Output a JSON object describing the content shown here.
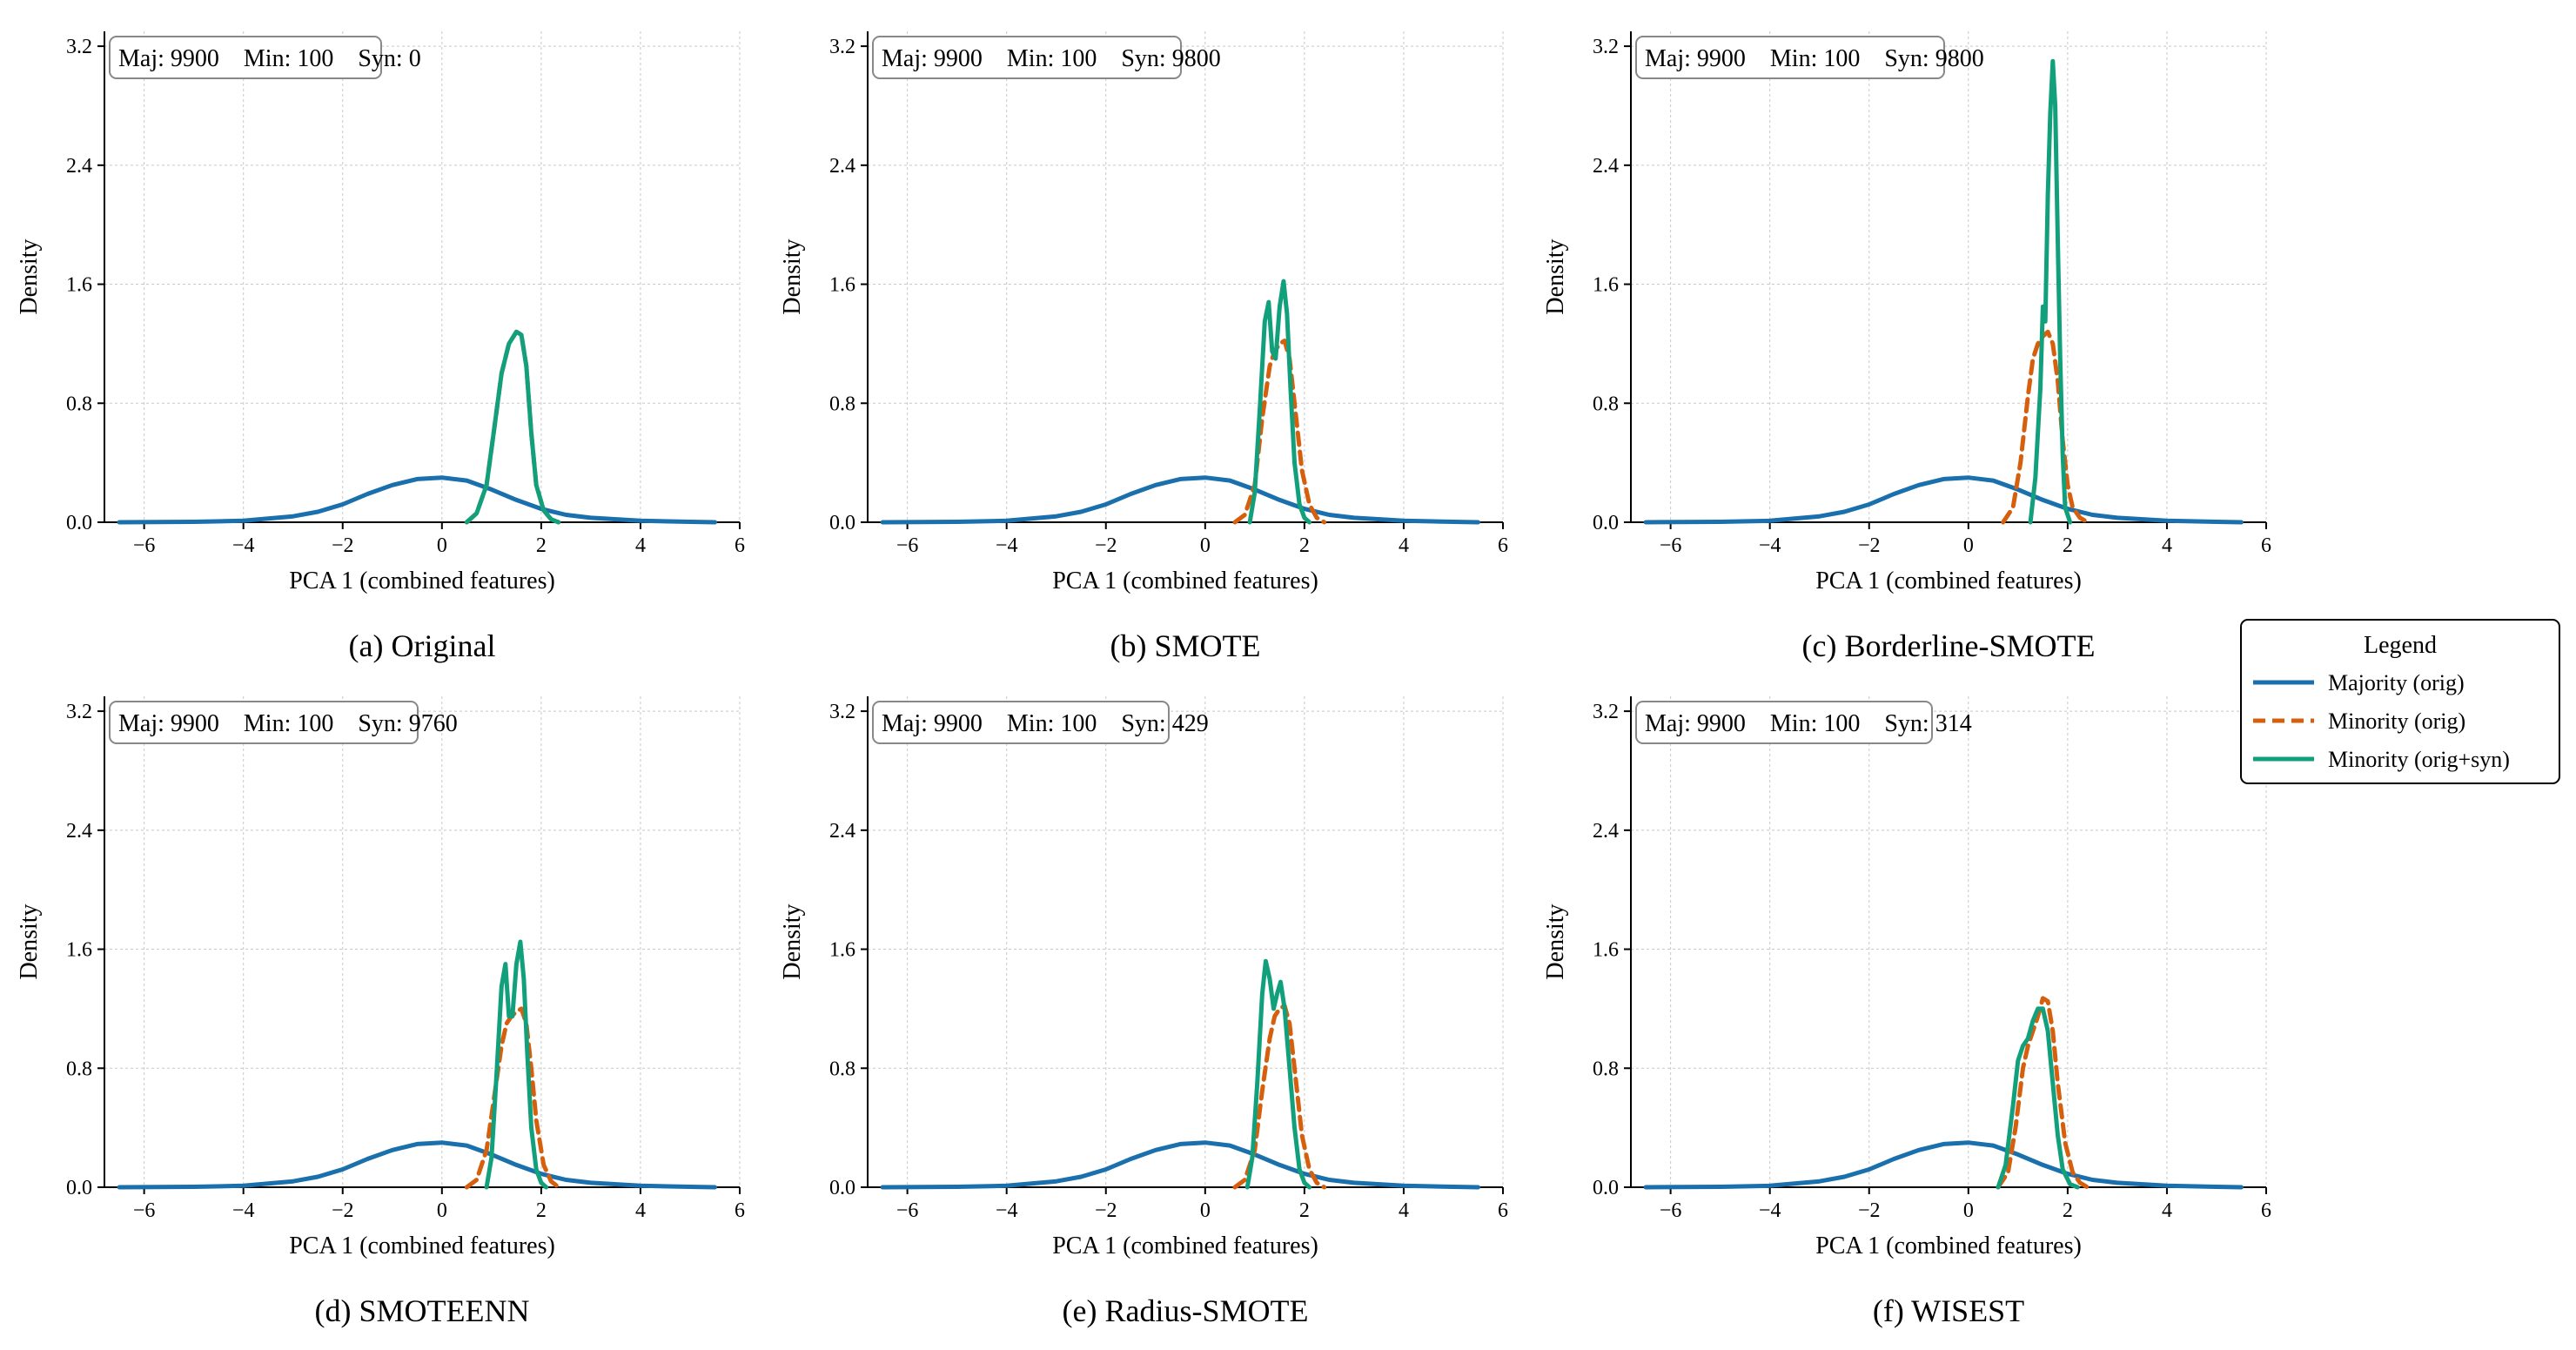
{
  "chart_data": [
    {
      "type": "line",
      "caption": "(a) Original",
      "counts": {
        "maj": "Maj: 9900",
        "min": "Min: 100",
        "syn": "Syn: 0"
      },
      "xlabel": "PCA 1 (combined features)",
      "ylabel": "Density",
      "xlim": [
        -6.8,
        6.0
      ],
      "ylim": [
        0,
        3.3
      ],
      "xticks": [
        -6,
        -4,
        -2,
        0,
        2,
        4,
        6
      ],
      "yticks": [
        0.0,
        0.8,
        1.6,
        2.4,
        3.2
      ],
      "grid": true,
      "series": [
        {
          "name": "Majority (orig)",
          "x": [
            -6.5,
            -5,
            -4,
            -3,
            -2.5,
            -2,
            -1.5,
            -1,
            -0.5,
            0,
            0.5,
            1,
            1.5,
            2,
            2.5,
            3,
            4,
            5,
            5.5
          ],
          "y": [
            0,
            0.003,
            0.01,
            0.04,
            0.07,
            0.12,
            0.19,
            0.25,
            0.29,
            0.3,
            0.28,
            0.22,
            0.15,
            0.09,
            0.05,
            0.03,
            0.01,
            0.003,
            0
          ]
        },
        {
          "name": "Minority (orig)",
          "x": [
            0.5,
            0.7,
            0.9,
            1.05,
            1.2,
            1.35,
            1.5,
            1.6,
            1.7,
            1.8,
            1.9,
            2.05,
            2.2,
            2.35
          ],
          "y": [
            0,
            0.06,
            0.25,
            0.62,
            1.0,
            1.2,
            1.28,
            1.26,
            1.05,
            0.6,
            0.25,
            0.08,
            0.02,
            0
          ]
        },
        {
          "name": "Minority (orig+syn)",
          "x": [
            0.5,
            0.7,
            0.9,
            1.05,
            1.2,
            1.35,
            1.5,
            1.6,
            1.7,
            1.8,
            1.9,
            2.05,
            2.2,
            2.35
          ],
          "y": [
            0,
            0.06,
            0.25,
            0.62,
            1.0,
            1.2,
            1.28,
            1.26,
            1.05,
            0.6,
            0.25,
            0.08,
            0.02,
            0
          ]
        }
      ]
    },
    {
      "type": "line",
      "caption": "(b) SMOTE",
      "counts": {
        "maj": "Maj: 9900",
        "min": "Min: 100",
        "syn": "Syn: 9800"
      },
      "xlabel": "PCA 1 (combined features)",
      "ylabel": "Density",
      "xlim": [
        -6.8,
        6.0
      ],
      "ylim": [
        0,
        3.3
      ],
      "xticks": [
        -6,
        -4,
        -2,
        0,
        2,
        4,
        6
      ],
      "yticks": [
        0.0,
        0.8,
        1.6,
        2.4,
        3.2
      ],
      "grid": true,
      "series": [
        {
          "name": "Majority (orig)",
          "x": [
            -6.5,
            -5,
            -4,
            -3,
            -2.5,
            -2,
            -1.5,
            -1,
            -0.5,
            0,
            0.5,
            1,
            1.5,
            2,
            2.5,
            3,
            4,
            5,
            5.5
          ],
          "y": [
            0,
            0.003,
            0.01,
            0.04,
            0.07,
            0.12,
            0.19,
            0.25,
            0.29,
            0.3,
            0.28,
            0.22,
            0.15,
            0.09,
            0.05,
            0.03,
            0.01,
            0.003,
            0
          ]
        },
        {
          "name": "Minority (orig)",
          "x": [
            0.6,
            0.8,
            1.0,
            1.15,
            1.3,
            1.4,
            1.5,
            1.6,
            1.7,
            1.8,
            1.95,
            2.1,
            2.25,
            2.4
          ],
          "y": [
            0,
            0.05,
            0.25,
            0.7,
            1.05,
            1.15,
            1.2,
            1.22,
            1.1,
            0.8,
            0.35,
            0.12,
            0.03,
            0
          ]
        },
        {
          "name": "Minority (orig+syn)",
          "x": [
            0.9,
            1.0,
            1.1,
            1.2,
            1.28,
            1.35,
            1.42,
            1.5,
            1.58,
            1.65,
            1.72,
            1.8,
            1.9,
            2.0,
            2.1
          ],
          "y": [
            0,
            0.2,
            0.75,
            1.35,
            1.48,
            1.15,
            1.1,
            1.45,
            1.62,
            1.4,
            0.9,
            0.4,
            0.12,
            0.03,
            0
          ]
        }
      ]
    },
    {
      "type": "line",
      "caption": "(c) Borderline-SMOTE",
      "counts": {
        "maj": "Maj: 9900",
        "min": "Min: 100",
        "syn": "Syn: 9800"
      },
      "xlabel": "PCA 1 (combined features)",
      "ylabel": "Density",
      "xlim": [
        -6.8,
        6.0
      ],
      "ylim": [
        0,
        3.3
      ],
      "xticks": [
        -6,
        -4,
        -2,
        0,
        2,
        4,
        6
      ],
      "yticks": [
        0.0,
        0.8,
        1.6,
        2.4,
        3.2
      ],
      "grid": true,
      "series": [
        {
          "name": "Majority (orig)",
          "x": [
            -6.5,
            -5,
            -4,
            -3,
            -2.5,
            -2,
            -1.5,
            -1,
            -0.5,
            0,
            0.5,
            1,
            1.5,
            2,
            2.5,
            3,
            4,
            5,
            5.5
          ],
          "y": [
            0,
            0.003,
            0.01,
            0.04,
            0.07,
            0.12,
            0.19,
            0.25,
            0.29,
            0.3,
            0.28,
            0.22,
            0.15,
            0.09,
            0.05,
            0.03,
            0.01,
            0.003,
            0
          ]
        },
        {
          "name": "Minority (orig)",
          "x": [
            0.7,
            0.9,
            1.05,
            1.2,
            1.3,
            1.4,
            1.5,
            1.6,
            1.7,
            1.8,
            1.9,
            2.0,
            2.1,
            2.25,
            2.4
          ],
          "y": [
            0,
            0.1,
            0.4,
            0.85,
            1.1,
            1.2,
            1.25,
            1.28,
            1.2,
            0.95,
            0.55,
            0.25,
            0.1,
            0.03,
            0
          ]
        },
        {
          "name": "Minority (orig+syn)",
          "x": [
            1.25,
            1.35,
            1.45,
            1.5,
            1.55,
            1.6,
            1.65,
            1.7,
            1.75,
            1.8,
            1.85,
            1.9,
            1.95,
            2.05
          ],
          "y": [
            0,
            0.3,
            0.9,
            1.45,
            1.35,
            2.2,
            2.75,
            3.1,
            2.8,
            1.9,
            1.1,
            0.45,
            0.1,
            0
          ]
        }
      ]
    },
    {
      "type": "line",
      "caption": "(d) SMOTEENN",
      "counts": {
        "maj": "Maj: 9900",
        "min": "Min: 100",
        "syn": "Syn: 9760"
      },
      "xlabel": "PCA 1 (combined features)",
      "ylabel": "Density",
      "xlim": [
        -6.8,
        6.0
      ],
      "ylim": [
        0,
        3.3
      ],
      "xticks": [
        -6,
        -4,
        -2,
        0,
        2,
        4,
        6
      ],
      "yticks": [
        0.0,
        0.8,
        1.6,
        2.4,
        3.2
      ],
      "grid": true,
      "series": [
        {
          "name": "Majority (orig)",
          "x": [
            -6.5,
            -5,
            -4,
            -3,
            -2.5,
            -2,
            -1.5,
            -1,
            -0.5,
            0,
            0.5,
            1,
            1.5,
            2,
            2.5,
            3,
            4,
            5,
            5.5
          ],
          "y": [
            0,
            0.003,
            0.01,
            0.04,
            0.07,
            0.12,
            0.19,
            0.25,
            0.29,
            0.3,
            0.28,
            0.22,
            0.15,
            0.09,
            0.05,
            0.03,
            0.01,
            0.003,
            0
          ]
        },
        {
          "name": "Minority (orig)",
          "x": [
            0.5,
            0.7,
            0.9,
            1.05,
            1.2,
            1.3,
            1.4,
            1.5,
            1.6,
            1.7,
            1.8,
            1.9,
            2.05,
            2.2,
            2.35
          ],
          "y": [
            0,
            0.05,
            0.25,
            0.6,
            0.95,
            1.1,
            1.15,
            1.18,
            1.2,
            1.1,
            0.8,
            0.45,
            0.15,
            0.04,
            0
          ]
        },
        {
          "name": "Minority (orig+syn)",
          "x": [
            0.9,
            1.0,
            1.1,
            1.2,
            1.28,
            1.35,
            1.42,
            1.5,
            1.58,
            1.65,
            1.72,
            1.8,
            1.9,
            2.0,
            2.1
          ],
          "y": [
            0,
            0.2,
            0.75,
            1.35,
            1.5,
            1.15,
            1.15,
            1.5,
            1.65,
            1.4,
            0.9,
            0.4,
            0.12,
            0.03,
            0
          ]
        }
      ]
    },
    {
      "type": "line",
      "caption": "(e) Radius-SMOTE",
      "counts": {
        "maj": "Maj: 9900",
        "min": "Min: 100",
        "syn": "Syn: 429"
      },
      "xlabel": "PCA 1 (combined features)",
      "ylabel": "Density",
      "xlim": [
        -6.8,
        6.0
      ],
      "ylim": [
        0,
        3.3
      ],
      "xticks": [
        -6,
        -4,
        -2,
        0,
        2,
        4,
        6
      ],
      "yticks": [
        0.0,
        0.8,
        1.6,
        2.4,
        3.2
      ],
      "grid": true,
      "series": [
        {
          "name": "Majority (orig)",
          "x": [
            -6.5,
            -5,
            -4,
            -3,
            -2.5,
            -2,
            -1.5,
            -1,
            -0.5,
            0,
            0.5,
            1,
            1.5,
            2,
            2.5,
            3,
            4,
            5,
            5.5
          ],
          "y": [
            0,
            0.003,
            0.01,
            0.04,
            0.07,
            0.12,
            0.19,
            0.25,
            0.29,
            0.3,
            0.28,
            0.22,
            0.15,
            0.09,
            0.05,
            0.03,
            0.01,
            0.003,
            0
          ]
        },
        {
          "name": "Minority (orig)",
          "x": [
            0.6,
            0.8,
            1.0,
            1.15,
            1.3,
            1.4,
            1.5,
            1.6,
            1.7,
            1.8,
            1.95,
            2.1,
            2.25,
            2.4
          ],
          "y": [
            0,
            0.05,
            0.25,
            0.65,
            1.0,
            1.15,
            1.2,
            1.22,
            1.1,
            0.8,
            0.35,
            0.12,
            0.03,
            0
          ]
        },
        {
          "name": "Minority (orig+syn)",
          "x": [
            0.85,
            0.95,
            1.05,
            1.15,
            1.22,
            1.3,
            1.38,
            1.45,
            1.52,
            1.6,
            1.7,
            1.8,
            1.9,
            2.0,
            2.1
          ],
          "y": [
            0,
            0.2,
            0.7,
            1.3,
            1.52,
            1.4,
            1.2,
            1.3,
            1.38,
            1.2,
            0.8,
            0.4,
            0.12,
            0.03,
            0
          ]
        }
      ]
    },
    {
      "type": "line",
      "caption": "(f) WISEST",
      "counts": {
        "maj": "Maj: 9900",
        "min": "Min: 100",
        "syn": "Syn: 314"
      },
      "xlabel": "PCA 1 (combined features)",
      "ylabel": "Density",
      "xlim": [
        -6.8,
        6.0
      ],
      "ylim": [
        0,
        3.3
      ],
      "xticks": [
        -6,
        -4,
        -2,
        0,
        2,
        4,
        6
      ],
      "yticks": [
        0.0,
        0.8,
        1.6,
        2.4,
        3.2
      ],
      "grid": true,
      "series": [
        {
          "name": "Majority (orig)",
          "x": [
            -6.5,
            -5,
            -4,
            -3,
            -2.5,
            -2,
            -1.5,
            -1,
            -0.5,
            0,
            0.5,
            1,
            1.5,
            2,
            2.5,
            3,
            4,
            5,
            5.5
          ],
          "y": [
            0,
            0.003,
            0.01,
            0.04,
            0.07,
            0.12,
            0.19,
            0.25,
            0.29,
            0.3,
            0.28,
            0.22,
            0.15,
            0.09,
            0.05,
            0.03,
            0.01,
            0.003,
            0
          ]
        },
        {
          "name": "Minority (orig)",
          "x": [
            0.6,
            0.8,
            0.95,
            1.1,
            1.2,
            1.3,
            1.4,
            1.5,
            1.6,
            1.7,
            1.8,
            1.95,
            2.1,
            2.25,
            2.4
          ],
          "y": [
            0,
            0.1,
            0.4,
            0.8,
            0.95,
            1.05,
            1.15,
            1.27,
            1.25,
            1.05,
            0.7,
            0.3,
            0.1,
            0.03,
            0
          ]
        },
        {
          "name": "Minority (orig+syn)",
          "x": [
            0.6,
            0.75,
            0.9,
            1.0,
            1.1,
            1.2,
            1.3,
            1.4,
            1.5,
            1.6,
            1.7,
            1.8,
            1.9,
            2.05,
            2.2
          ],
          "y": [
            0,
            0.15,
            0.55,
            0.85,
            0.95,
            1.0,
            1.12,
            1.2,
            1.2,
            1.05,
            0.7,
            0.35,
            0.12,
            0.02,
            0
          ]
        }
      ]
    }
  ],
  "legend": {
    "title": "Legend",
    "entries": [
      {
        "label": "Majority (orig)",
        "color": "#1a6fad",
        "dash": "solid"
      },
      {
        "label": "Minority (orig)",
        "color": "#d65f0e",
        "dash": "dashed"
      },
      {
        "label": "Minority (orig+syn)",
        "color": "#12a07c",
        "dash": "solid"
      }
    ]
  },
  "colors": {
    "majority": "#1a6fad",
    "minority": "#d65f0e",
    "minority_syn": "#12a07c",
    "grid": "#c8c8c8"
  }
}
